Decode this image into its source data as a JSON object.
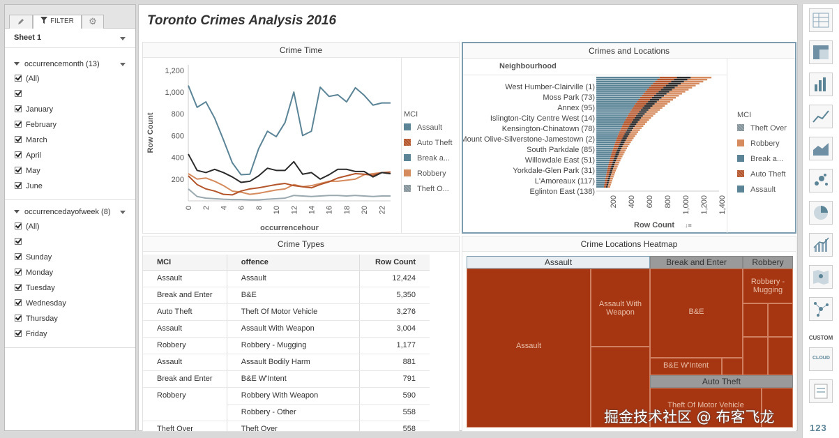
{
  "left_panel": {
    "tabs": {
      "filter": "FILTER"
    },
    "sheet": "Sheet 1",
    "month_filter": {
      "header": "occurrencemonth (13)",
      "items": [
        "(All)",
        "",
        "January",
        "February",
        "March",
        "April",
        "May",
        "June"
      ]
    },
    "dow_filter": {
      "header": "occurrencedayofweek (8)",
      "items": [
        "(All)",
        "",
        "Sunday",
        "Monday",
        "Tuesday",
        "Wednesday",
        "Thursday",
        "Friday"
      ]
    }
  },
  "dashboard": {
    "title": "Toronto Crimes Analysis 2016",
    "crime_time": {
      "title": "Crime Time"
    },
    "crimes_locations": {
      "title": "Crimes and Locations",
      "column_header": "Neighbourhood",
      "xlabel": "Row Count"
    },
    "crime_types": {
      "title": "Crime Types",
      "headers": [
        "MCI",
        "offence",
        "Row Count"
      ],
      "rows": [
        [
          "Assault",
          "Assault",
          "12,424"
        ],
        [
          "Break and Enter",
          "B&E",
          "5,350"
        ],
        [
          "Auto Theft",
          "Theft Of Motor Vehicle",
          "3,276"
        ],
        [
          "Assault",
          "Assault With Weapon",
          "3,004"
        ],
        [
          "Robbery",
          "Robbery - Mugging",
          "1,177"
        ],
        [
          "Assault",
          "Assault Bodily Harm",
          "881"
        ],
        [
          "Break and Enter",
          "B&E W'Intent",
          "791"
        ],
        [
          "Robbery",
          "Robbery With Weapon",
          "590"
        ],
        [
          "",
          "Robbery - Other",
          "558"
        ],
        [
          "Theft Over",
          "Theft Over",
          "558"
        ]
      ]
    },
    "heatmap": {
      "title": "Crime Locations Heatmap",
      "groups": [
        "Assault",
        "Break and Enter",
        "Robbery",
        "Auto Theft"
      ],
      "cells": {
        "assault": "Assault",
        "assault_weapon": "Assault With Weapon",
        "be": "B&E",
        "be_intent": "B&E W'Intent",
        "robbery_mugging": "Robbery - Mugging",
        "theft_motor": "Theft Of Motor Vehicle"
      }
    }
  },
  "right_panel": {
    "custom_label": "CUSTOM",
    "cloud_label": "CLOUD",
    "numbers_label": "123"
  },
  "watermark": "掘金技术社区 @ 布客飞龙",
  "colors": {
    "assault": "#5b8497",
    "auto_theft": "#b4542a",
    "break_enter": "#2b2b2b",
    "robbery": "#d68b5e",
    "theft_over": "#9aa9b0",
    "treemap": "#a63512"
  },
  "chart_data": [
    {
      "type": "line",
      "title": "Crime Time",
      "xlabel": "occurrencehour",
      "ylabel": "Row Count",
      "legend_title": "MCI",
      "legend": [
        "Assault",
        "Auto Theft",
        "Break a...",
        "Robbery",
        "Theft O..."
      ],
      "x": [
        0,
        1,
        2,
        3,
        4,
        5,
        6,
        7,
        8,
        9,
        10,
        11,
        12,
        13,
        14,
        15,
        16,
        17,
        18,
        19,
        20,
        21,
        22,
        23
      ],
      "xticks": [
        0,
        2,
        4,
        6,
        8,
        10,
        12,
        14,
        16,
        18,
        20,
        22
      ],
      "ylim": [
        0,
        1250
      ],
      "yticks": [
        200,
        400,
        600,
        800,
        1000,
        1200
      ],
      "ytick_labels": [
        "200",
        "400",
        "600",
        "800",
        "1,000",
        "1,200"
      ],
      "series": [
        {
          "name": "Assault",
          "values": [
            1060,
            860,
            910,
            760,
            560,
            350,
            240,
            245,
            480,
            640,
            590,
            720,
            1000,
            600,
            640,
            1045,
            960,
            975,
            910,
            1040,
            970,
            880,
            900,
            900
          ]
        },
        {
          "name": "Auto Theft",
          "values": [
            230,
            150,
            110,
            90,
            60,
            55,
            90,
            110,
            120,
            135,
            150,
            160,
            140,
            130,
            120,
            150,
            175,
            210,
            230,
            250,
            245,
            235,
            260,
            265
          ]
        },
        {
          "name": "Break and Enter",
          "values": [
            430,
            280,
            260,
            290,
            260,
            220,
            170,
            180,
            230,
            300,
            280,
            280,
            360,
            245,
            260,
            200,
            240,
            290,
            290,
            270,
            270,
            220,
            260,
            250
          ]
        },
        {
          "name": "Robbery",
          "values": [
            250,
            200,
            210,
            180,
            140,
            90,
            80,
            60,
            70,
            85,
            100,
            110,
            150,
            130,
            140,
            160,
            180,
            180,
            190,
            200,
            240,
            250,
            260,
            250
          ]
        },
        {
          "name": "Theft Over",
          "values": [
            110,
            40,
            25,
            20,
            15,
            12,
            12,
            10,
            10,
            15,
            20,
            25,
            50,
            45,
            40,
            45,
            50,
            50,
            45,
            50,
            45,
            40,
            45,
            45
          ]
        }
      ]
    },
    {
      "type": "bar",
      "orientation": "horizontal",
      "stacked": true,
      "title": "Crimes and Locations",
      "xlabel": "Row Count",
      "xticks": [
        "200",
        "400",
        "600",
        "800",
        "1,000",
        "1,200",
        "1,400"
      ],
      "legend_title": "MCI",
      "legend": [
        "Theft Over",
        "Robbery",
        "Break a...",
        "Auto Theft",
        "Assault"
      ],
      "categories": [
        "West Humber-Clairville (1)",
        "Moss Park (73)",
        "Annex (95)",
        "Islington-City Centre West (14)",
        "Kensington-Chinatown (78)",
        "Mount Olive-Silverstone-Jamestown (2)",
        "South Parkdale (85)",
        "Willowdale East (51)",
        "Yorkdale-Glen Park (31)",
        "L'Amoreaux (117)",
        "Eglinton East (138)"
      ]
    }
  ]
}
